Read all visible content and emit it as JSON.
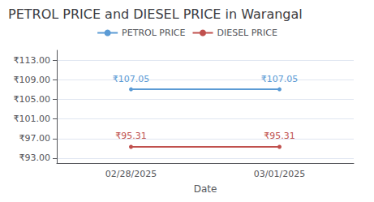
{
  "chart_data": {
    "type": "line",
    "title": "PETROL PRICE and DIESEL PRICE in Warangal",
    "xlabel": "Date",
    "categories": [
      "02/28/2025",
      "03/01/2025"
    ],
    "series": [
      {
        "name": "PETROL PRICE",
        "color": "#5b9bd5",
        "values": [
          107.05,
          107.05
        ],
        "value_labels": [
          "₹107.05",
          "₹107.05"
        ]
      },
      {
        "name": "DIESEL PRICE",
        "color": "#c0504d",
        "values": [
          95.31,
          95.31
        ],
        "value_labels": [
          "₹95.31",
          "₹95.31"
        ]
      }
    ],
    "ylim": [
      92.0,
      115.0
    ],
    "yticks": [
      {
        "value": 93.0,
        "label": "₹93.00"
      },
      {
        "value": 97.0,
        "label": "₹97.00"
      },
      {
        "value": 101.0,
        "label": "₹101.00"
      },
      {
        "value": 105.0,
        "label": "₹105.00"
      },
      {
        "value": 109.0,
        "label": "₹109.00"
      },
      {
        "value": 113.0,
        "label": "₹113.00"
      }
    ],
    "grid": true,
    "legend": "top",
    "data_labels": true
  }
}
